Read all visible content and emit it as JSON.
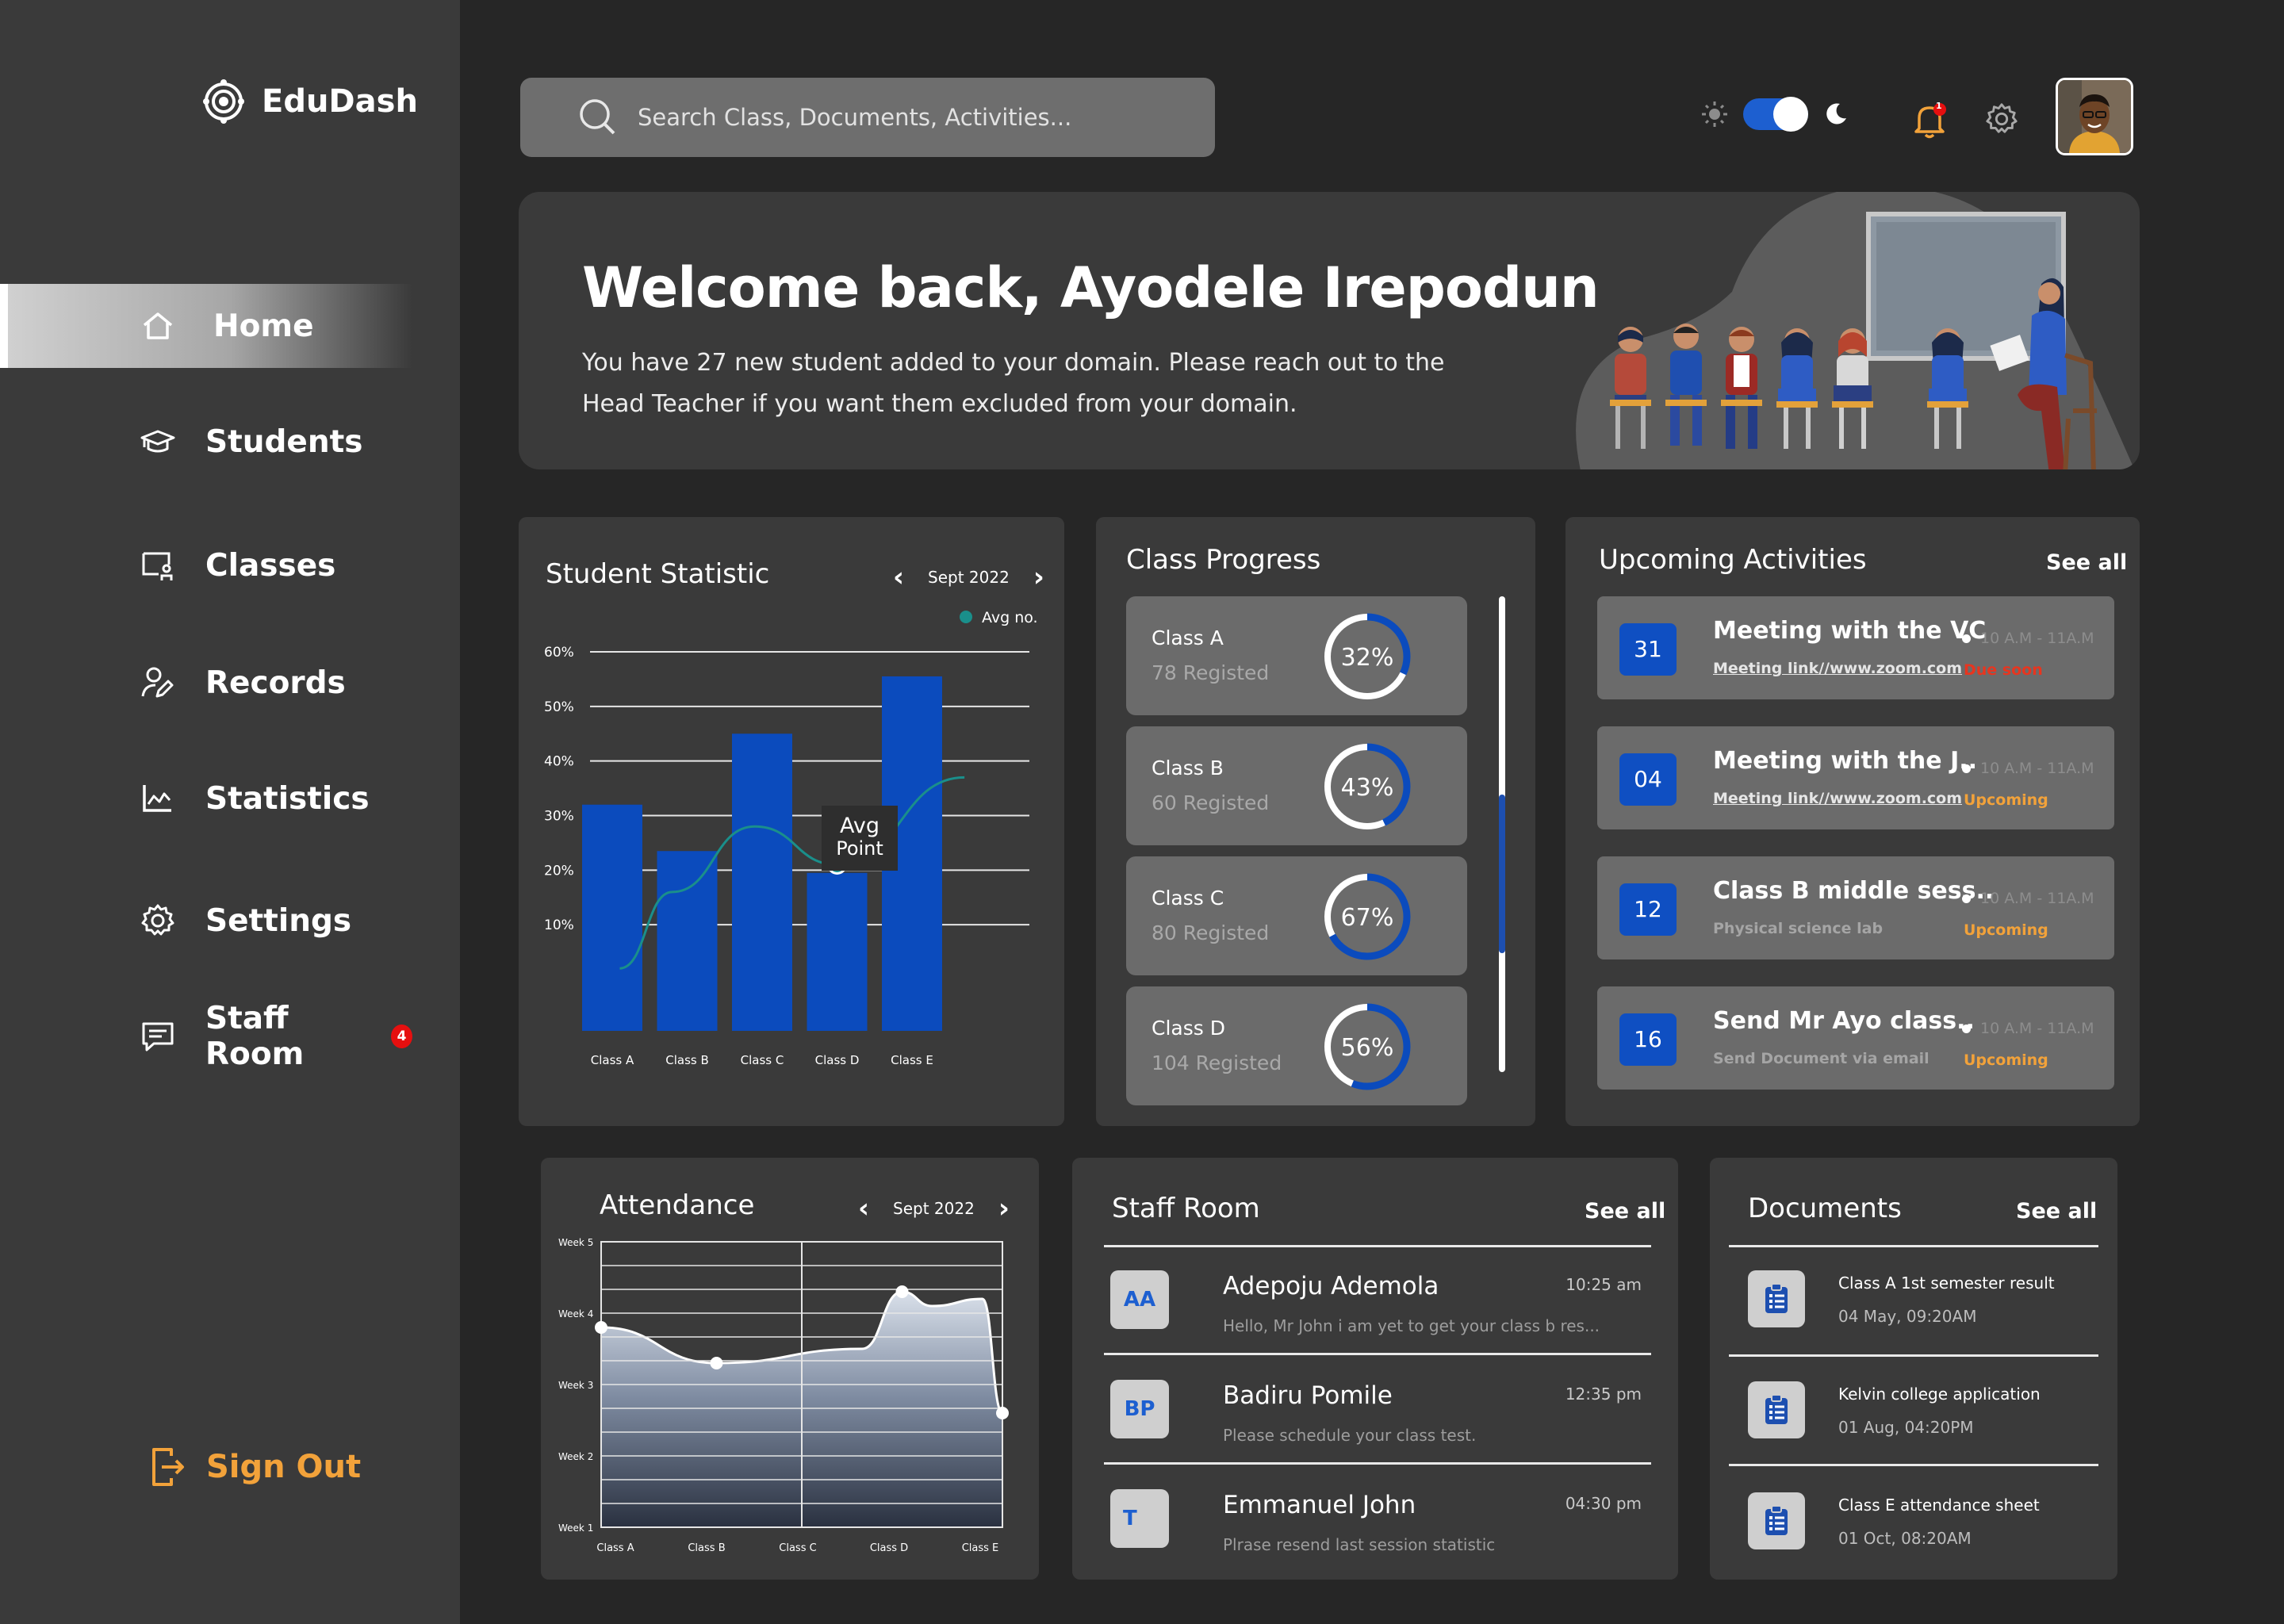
{
  "app": {
    "name": "EduDash"
  },
  "search": {
    "placeholder": "Search Class, Documents, Activities..."
  },
  "nav": {
    "items": [
      {
        "label": "Home",
        "icon": "home-icon"
      },
      {
        "label": "Students",
        "icon": "graduation-cap-icon"
      },
      {
        "label": "Classes",
        "icon": "classroom-icon"
      },
      {
        "label": "Records",
        "icon": "user-edit-icon"
      },
      {
        "label": "Statistics",
        "icon": "line-chart-icon"
      },
      {
        "label": "Settings",
        "icon": "gear-icon"
      },
      {
        "label": "Staff Room",
        "icon": "message-icon",
        "badge": "4"
      }
    ],
    "signout": "Sign Out"
  },
  "notifications": {
    "badge": "1"
  },
  "welcome": {
    "title": "Welcome back, Ayodele Irepodun",
    "message": "You have 27 new student added to your domain. Please reach out to the Head Teacher if you want them excluded from your domain."
  },
  "student_statistic": {
    "title": "Student Statistic",
    "month": "Sept 2022",
    "tooltip_line1": "Avg",
    "tooltip_line2": "Point"
  },
  "attendance": {
    "title": "Attendance",
    "month": "Sept 2022"
  },
  "chart_data": [
    {
      "type": "bar",
      "categories": [
        "Class A",
        "Class B",
        "Class C",
        "Class D",
        "Class E"
      ],
      "values": [
        32,
        23.5,
        45,
        19.5,
        55.5
      ],
      "ylim": [
        0,
        60
      ],
      "yticks": [
        "10%",
        "20%",
        "30%",
        "40%",
        "50%",
        "60%"
      ],
      "grid": true,
      "legend": "top-right",
      "series": [
        {
          "name": "Avg no.",
          "type": "line",
          "color": "#1a8f8b",
          "x": [
            0.1,
            0.8,
            1.9,
            3.0,
            4.7
          ],
          "values": [
            2,
            16,
            28,
            21,
            37
          ]
        }
      ],
      "bar_color": "#0b4bbd"
    },
    {
      "type": "area",
      "categories": [
        "Class A",
        "Class B",
        "Class C",
        "Class D",
        "Class E"
      ],
      "yticks": [
        "Week 1",
        "Week 2",
        "Week 3",
        "Week 4",
        "Week 5"
      ],
      "ylim": [
        1,
        5
      ],
      "grid": true,
      "x": [
        0,
        1.15,
        2.6,
        3.0,
        3.3,
        3.8,
        4.0
      ],
      "values": [
        3.8,
        3.3,
        3.5,
        4.3,
        4.1,
        4.2,
        2.6
      ]
    }
  ],
  "class_progress": {
    "title": "Class Progress",
    "items": [
      {
        "name": "Class A",
        "sub": "78 Registed",
        "pct": 32,
        "label": "32%"
      },
      {
        "name": "Class B",
        "sub": "60 Registed",
        "pct": 43,
        "label": "43%"
      },
      {
        "name": "Class C",
        "sub": "80 Registed",
        "pct": 67,
        "label": "67%"
      },
      {
        "name": "Class D",
        "sub": "104 Registed",
        "pct": 56,
        "label": "56%"
      }
    ]
  },
  "activities": {
    "title": "Upcoming Activities",
    "see_all": "See all",
    "items": [
      {
        "day": "31",
        "title": "Meeting with the VC",
        "sub": "Meeting link//www.zoom.com",
        "time": "10 A.M - 11A.M",
        "status": "Due soon",
        "status_color": "#e8351f"
      },
      {
        "day": "04",
        "title": "Meeting with the J..",
        "sub": "Meeting link//www.zoom.com",
        "time": "10 A.M - 11A.M",
        "status": "Upcoming",
        "status_color": "#f2a23a"
      },
      {
        "day": "12",
        "title": "Class B middle sess..",
        "sub": "Physical science lab",
        "time": "10 A.M - 11A.M",
        "status": "Upcoming",
        "status_color": "#f2a23a"
      },
      {
        "day": "16",
        "title": "Send Mr Ayo class..",
        "sub": "Send Document via email",
        "time": "10 A.M - 11A.M",
        "status": "Upcoming",
        "status_color": "#f2a23a"
      }
    ]
  },
  "staff_room": {
    "title": "Staff Room",
    "see_all": "See all",
    "items": [
      {
        "initials": "AA",
        "name": "Adepoju Ademola",
        "preview": "Hello, Mr John  i am yet to get your class b res...",
        "time": "10:25 am"
      },
      {
        "initials": "BP",
        "name": "Badiru Pomile",
        "preview": "Please schedule your class test.",
        "time": "12:35 pm"
      },
      {
        "initials": "T",
        "name": "Emmanuel John",
        "preview": "Plrase resend last session statistic",
        "time": "04:30 pm"
      }
    ]
  },
  "documents": {
    "title": "Documents",
    "see_all": "See all",
    "items": [
      {
        "name": "Class A 1st semester result",
        "date": "04 May, 09:20AM"
      },
      {
        "name": "Kelvin college application",
        "date": "01 Aug, 04:20PM"
      },
      {
        "name": "Class E attendance sheet",
        "date": "01 Oct, 08:20AM"
      }
    ]
  },
  "colors": {
    "accent": "#0b4bbd",
    "orange": "#f2a23a",
    "panel": "#3a3a3a",
    "background": "#262626"
  }
}
